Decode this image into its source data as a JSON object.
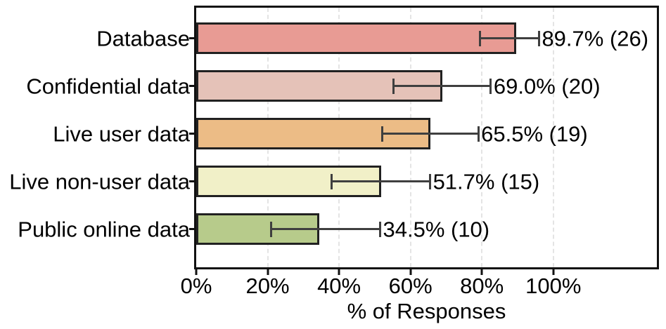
{
  "chart_data": {
    "type": "bar",
    "orientation": "horizontal",
    "title": "",
    "xlabel": "% of Responses",
    "ylabel": "",
    "xlim": [
      0,
      129
    ],
    "xticks": [
      0,
      20,
      40,
      60,
      80,
      100
    ],
    "xtick_labels": [
      "0%",
      "20%",
      "40%",
      "60%",
      "80%",
      "100%"
    ],
    "grid": "vertical-dashed",
    "legend": "none",
    "categories": [
      "Database",
      "Confidential data",
      "Live user data",
      "Live non-user data",
      "Public online data"
    ],
    "values": [
      89.7,
      69.0,
      65.5,
      51.7,
      34.5
    ],
    "counts": [
      26,
      20,
      19,
      15,
      10
    ],
    "value_labels": [
      "89.7% (26)",
      "69.0% (20)",
      "65.5% (19)",
      "51.7% (15)",
      "34.5% (10)"
    ],
    "error_low": [
      79.5,
      55.2,
      52.0,
      38.0,
      21.0
    ],
    "error_high": [
      96.0,
      82.5,
      79.0,
      65.5,
      51.5
    ],
    "bar_colors": [
      "#e89b94",
      "#e5c2b8",
      "#ecbc86",
      "#f1f0c8",
      "#b7cb8b"
    ],
    "bar_edge_color": "#212121",
    "error_color": "#3f3f3f",
    "grid_color": "#e4e4e4",
    "text_color": "#000000",
    "background": "#ffffff"
  }
}
